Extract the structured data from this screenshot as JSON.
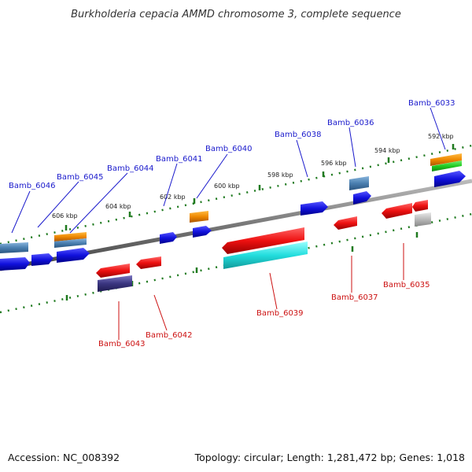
{
  "title": "Burkholderia cepacia AMMD chromosome 3, complete sequence",
  "footer": {
    "accession": "Accession: NC_008392",
    "topology": "Topology: circular; Length: 1,281,472 bp; Genes: 1,018"
  },
  "scale": {
    "ticks": [
      "606 kbp",
      "604 kbp",
      "602 kbp",
      "600 kbp",
      "598 kbp",
      "596 kbp",
      "594 kbp",
      "592 kbp"
    ]
  },
  "genes": {
    "top": [
      "Bamb_6046",
      "Bamb_6045",
      "Bamb_6044",
      "Bamb_6041",
      "Bamb_6040",
      "Bamb_6038",
      "Bamb_6036",
      "Bamb_6033"
    ],
    "bottom": [
      "Bamb_6043",
      "Bamb_6042",
      "Bamb_6039",
      "Bamb_6037",
      "Bamb_6035"
    ]
  },
  "colors": {
    "backbone": "#888888",
    "scale_dots": "#1f7a1f",
    "blue_gene": "#1111dd",
    "red_gene": "#ee1111",
    "cyan_gene": "#22dddd",
    "orange_gene": "#ee8800",
    "steel_gene": "#4a7fb0",
    "purple_gene": "#3a3580",
    "gray_gene": "#b8b8b8",
    "green_gene": "#22cc22",
    "blue_label": "#1a1acc",
    "red_label": "#cc1111"
  }
}
